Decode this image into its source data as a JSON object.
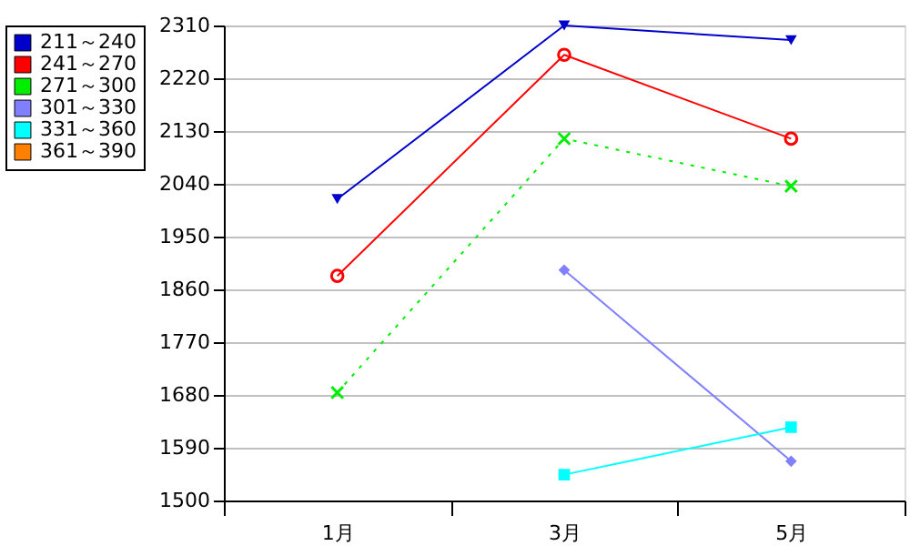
{
  "chart_data": {
    "type": "line",
    "categories": [
      "1月",
      "3月",
      "5月"
    ],
    "series": [
      {
        "name": "211～240",
        "color": "#0000cc",
        "marker": "triangle",
        "values": [
          2014,
          2310,
          2285
        ]
      },
      {
        "name": "241～270",
        "color": "#ff0000",
        "marker": "circle",
        "values": [
          1883,
          2260,
          2117
        ]
      },
      {
        "name": "271～300",
        "color": "#00ee00",
        "marker": "cross",
        "line_style": "dotted",
        "values": [
          1684,
          2117,
          2036
        ]
      },
      {
        "name": "301～330",
        "color": "#8080ff",
        "marker": "diamond",
        "values": [
          null,
          1893,
          1567
        ]
      },
      {
        "name": "331～360",
        "color": "#00ffff",
        "marker": "square",
        "values": [
          null,
          1544,
          1625
        ]
      },
      {
        "name": "361～390",
        "color": "#ff8000",
        "values": [
          null,
          null,
          null
        ]
      }
    ],
    "ylim": [
      1500,
      2310
    ],
    "yticks": [
      1500,
      1590,
      1680,
      1770,
      1860,
      1950,
      2040,
      2130,
      2220,
      2310
    ],
    "grid": "y",
    "legend": "top left"
  }
}
